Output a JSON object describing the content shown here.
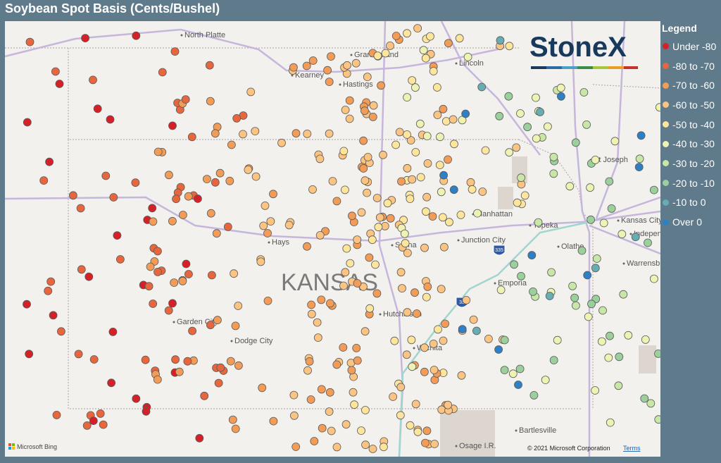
{
  "header": {
    "title": "Soybean Spot Basis (Cents/Bushel)"
  },
  "legend": {
    "title": "Legend",
    "items": [
      {
        "label": "Under -80",
        "color": "#d62027"
      },
      {
        "label": "-80 to -70",
        "color": "#e8663d"
      },
      {
        "label": "-70 to -60",
        "color": "#f39c58"
      },
      {
        "label": "-60 to -50",
        "color": "#fbc482"
      },
      {
        "label": "-50 to -40",
        "color": "#fde59b"
      },
      {
        "label": "-40 to -30",
        "color": "#eef3b4"
      },
      {
        "label": "-30 to -20",
        "color": "#c8e6a6"
      },
      {
        "label": "-20 to -10",
        "color": "#9bd09c"
      },
      {
        "label": "-10 to 0",
        "color": "#67adb2"
      },
      {
        "label": "Over 0",
        "color": "#2f7fc4"
      }
    ]
  },
  "map": {
    "labels": [
      "North Platte",
      "Grand Island",
      "Kearney",
      "Hastings",
      "Lincoln",
      "St Joseph",
      "Kansas City",
      "Independence",
      "Manhattan",
      "Topeka",
      "Junction City",
      "Olathe",
      "Warrensburg",
      "Hays",
      "Salina",
      "Emporia",
      "Garden City",
      "Dodge City",
      "Hutchinson",
      "Wichita",
      "Bartlesville",
      "Osage I.R."
    ],
    "state_label": "KANSAS",
    "shields": [
      "335",
      "35"
    ],
    "logo": "StoneX",
    "attribution": {
      "provider": "Microsoft Bing",
      "copyright": "© 2021 Microsoft Corporation",
      "terms": "Terms"
    }
  }
}
